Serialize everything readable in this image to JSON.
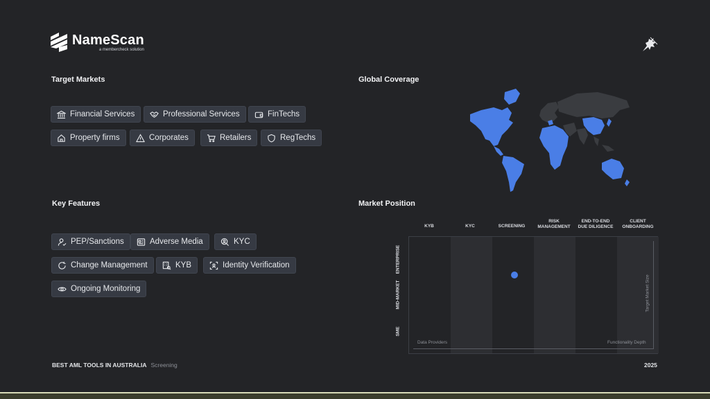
{
  "brand": {
    "name": "NameScan",
    "tagline": "a membercheck solution"
  },
  "target_markets": {
    "title": "Target Markets",
    "items": [
      {
        "label": "Financial Services",
        "icon": "bank-icon"
      },
      {
        "label": "Professional Services",
        "icon": "handshake-icon"
      },
      {
        "label": "FinTechs",
        "icon": "wallet-icon"
      },
      {
        "label": "Property firms",
        "icon": "home-icon"
      },
      {
        "label": "Corporates",
        "icon": "warning-icon"
      },
      {
        "label": "Retailers",
        "icon": "cart-icon"
      },
      {
        "label": "RegTechs",
        "icon": "shield-icon"
      }
    ]
  },
  "global_coverage": {
    "title": "Global Coverage",
    "highlight_color": "#4a7ee6",
    "base_color": "#3a3c40"
  },
  "key_features": {
    "title": "Key Features",
    "items": [
      {
        "label": "PEP/Sanctions",
        "icon": "user-check-icon"
      },
      {
        "label": "Adverse Media",
        "icon": "newspaper-icon"
      },
      {
        "label": "KYC",
        "icon": "user-search-icon"
      },
      {
        "label": "Change Management",
        "icon": "refresh-icon"
      },
      {
        "label": "KYB",
        "icon": "building-search-icon"
      },
      {
        "label": "Identity Verification",
        "icon": "id-scan-icon"
      },
      {
        "label": "Ongoing Monitoring",
        "icon": "eye-icon"
      }
    ]
  },
  "market_position": {
    "title": "Market Position",
    "columns": [
      [
        "KYB"
      ],
      [
        "KYC"
      ],
      [
        "SCREENING"
      ],
      [
        "RISK",
        "MANAGEMENT"
      ],
      [
        "END-TO-END",
        "DUE DILIGENCE"
      ],
      [
        "CLIENT",
        "ONBOARDING"
      ]
    ],
    "rows": [
      "ENTERPRISE",
      "MID-MARKET",
      "SME"
    ],
    "x_axis_start": "Data Providers",
    "x_axis_end": "Functionality Depth",
    "y_axis_label": "Target Market Size",
    "marker": {
      "column": "SCREENING",
      "row": "ENTERPRISE",
      "color": "#4a7ee6"
    }
  },
  "footer": {
    "title": "BEST AML TOOLS IN AUSTRALIA",
    "subtitle": "Screening",
    "year": "2025"
  }
}
